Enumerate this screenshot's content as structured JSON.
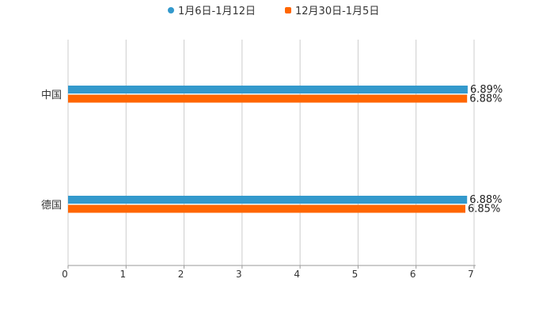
{
  "chart_data": {
    "type": "bar",
    "orientation": "horizontal",
    "categories": [
      "中国",
      "德国"
    ],
    "series": [
      {
        "name": "1月6日-1月12日",
        "color": "#3399cc",
        "values": [
          6.89,
          6.88
        ],
        "labels": [
          "6.89%",
          "6.88%"
        ]
      },
      {
        "name": "12月30日-1月5日",
        "color": "#ff6600",
        "values": [
          6.88,
          6.85
        ],
        "labels": [
          "6.88%",
          "6.85%"
        ]
      }
    ],
    "xlim": [
      0,
      7
    ],
    "xticks": [
      "0",
      "1",
      "2",
      "3",
      "4",
      "5",
      "6",
      "7"
    ],
    "grid": true,
    "legend": "top-center"
  }
}
